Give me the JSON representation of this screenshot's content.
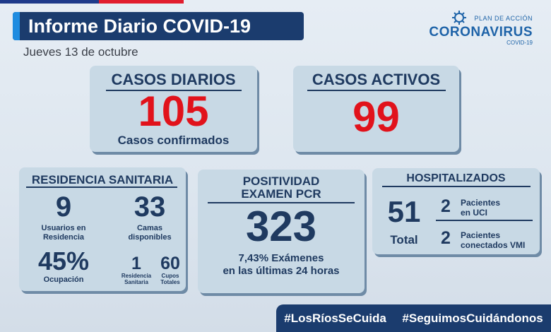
{
  "header": {
    "title": "Informe Diario COVID-19",
    "date": "Jueves 13 de octubre"
  },
  "logo": {
    "plan": "PLAN DE ACCIÓN",
    "brand": "CORONAVIRUS",
    "sub": "COVID-19"
  },
  "casos_diarios": {
    "title": "CASOS DIARIOS",
    "value": "105",
    "caption": "Casos confirmados"
  },
  "casos_activos": {
    "title": "CASOS ACTIVOS",
    "value": "99"
  },
  "residencia": {
    "title": "RESIDENCIA SANITARIA",
    "usuarios_value": "9",
    "usuarios_label_1": "Usuarios en",
    "usuarios_label_2": "Residencia",
    "camas_value": "33",
    "camas_label_1": "Camas",
    "camas_label_2": "disponibles",
    "ocupacion_value": "45%",
    "ocupacion_label": "Ocupación",
    "residencias_value": "1",
    "residencias_label_1": "Residencia",
    "residencias_label_2": "Sanitaria",
    "cupos_value": "60",
    "cupos_label_1": "Cupos",
    "cupos_label_2": "Totales"
  },
  "positividad": {
    "title_1": "POSITIVIDAD",
    "title_2": "EXAMEN PCR",
    "value": "323",
    "caption_1": "7,43% Exámenes",
    "caption_2": "en las últimas 24 horas"
  },
  "hospitalizados": {
    "title": "HOSPITALIZADOS",
    "total_value": "51",
    "total_label": "Total",
    "uci_value": "2",
    "uci_label_1": "Pacientes",
    "uci_label_2": "en UCI",
    "vmi_value": "2",
    "vmi_label_1": "Pacientes",
    "vmi_label_2": "conectados VMI"
  },
  "hashtags": [
    "#LosRíosSeCuida",
    "#SeguimosCuidándonos"
  ],
  "colors": {
    "navy": "#1f3a60",
    "red": "#e1121b",
    "card": "#c8d9e5",
    "banner": "#1b3c6e"
  }
}
